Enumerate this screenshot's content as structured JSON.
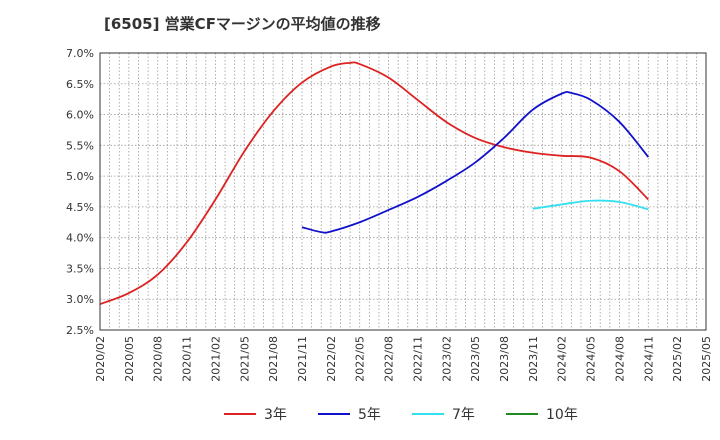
{
  "chart_data": {
    "type": "line",
    "title": "[6505]  営業CFマージンの平均値の推移",
    "xlabel": "",
    "ylabel": "",
    "ylim": [
      2.5,
      7.0
    ],
    "ytick_labels": [
      "2.5%",
      "3.0%",
      "3.5%",
      "4.0%",
      "4.5%",
      "5.0%",
      "5.5%",
      "6.0%",
      "6.5%",
      "7.0%"
    ],
    "xtick_labels": [
      "2020/02",
      "2020/05",
      "2020/08",
      "2020/11",
      "2021/02",
      "2021/05",
      "2021/08",
      "2021/11",
      "2022/02",
      "2022/05",
      "2022/08",
      "2022/11",
      "2023/02",
      "2023/05",
      "2023/08",
      "2023/11",
      "2024/02",
      "2024/05",
      "2024/08",
      "2024/11",
      "2025/02",
      "2025/05"
    ],
    "grid": true,
    "legend_position": "bottom",
    "series": [
      {
        "name": "3年",
        "color": "#dd2222",
        "x": [
          "2020/02",
          "2020/05",
          "2020/08",
          "2020/11",
          "2021/02",
          "2021/05",
          "2021/08",
          "2021/11",
          "2022/02",
          "2022/04",
          "2022/05",
          "2022/08",
          "2022/11",
          "2023/02",
          "2023/05",
          "2023/08",
          "2023/11",
          "2024/02",
          "2024/05",
          "2024/08",
          "2024/11"
        ],
        "values": [
          2.92,
          3.1,
          3.4,
          3.92,
          4.62,
          5.4,
          6.05,
          6.52,
          6.78,
          6.84,
          6.82,
          6.6,
          6.24,
          5.88,
          5.62,
          5.47,
          5.38,
          5.33,
          5.3,
          5.08,
          4.62
        ]
      },
      {
        "name": "5年",
        "color": "#1111cc",
        "x": [
          "2021/11",
          "2022/01",
          "2022/02",
          "2022/05",
          "2022/08",
          "2022/11",
          "2023/02",
          "2023/05",
          "2023/08",
          "2023/11",
          "2024/02",
          "2024/03",
          "2024/05",
          "2024/08",
          "2024/11"
        ],
        "values": [
          4.17,
          4.09,
          4.1,
          4.25,
          4.45,
          4.66,
          4.92,
          5.22,
          5.62,
          6.08,
          6.34,
          6.35,
          6.24,
          5.88,
          5.31
        ]
      },
      {
        "name": "7年",
        "color": "#33e0f0",
        "x": [
          "2023/11",
          "2024/02",
          "2024/05",
          "2024/08",
          "2024/11"
        ],
        "values": [
          4.47,
          4.54,
          4.6,
          4.58,
          4.46
        ]
      },
      {
        "name": "10年",
        "color": "#228822",
        "x": [],
        "values": []
      }
    ]
  }
}
